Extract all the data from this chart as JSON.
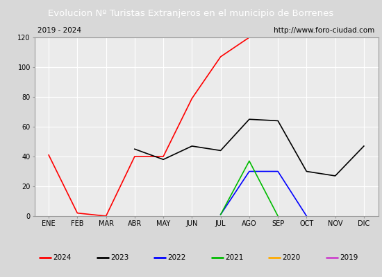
{
  "title": "Evolucion Nº Turistas Extranjeros en el municipio de Borrenes",
  "subtitle_left": "2019 - 2024",
  "subtitle_right": "http://www.foro-ciudad.com",
  "months": [
    "ENE",
    "FEB",
    "MAR",
    "ABR",
    "MAY",
    "JUN",
    "JUL",
    "AGO",
    "SEP",
    "OCT",
    "NOV",
    "DIC"
  ],
  "ylim": [
    0,
    120
  ],
  "yticks": [
    0,
    20,
    40,
    60,
    80,
    100,
    120
  ],
  "series": {
    "2024": {
      "color": "#ff0000",
      "data": [
        41,
        2,
        0,
        40,
        40,
        79,
        107,
        120,
        null,
        null,
        null,
        null
      ]
    },
    "2023": {
      "color": "#000000",
      "data": [
        null,
        null,
        null,
        45,
        38,
        47,
        44,
        65,
        64,
        30,
        27,
        47
      ]
    },
    "2022": {
      "color": "#0000ff",
      "data": [
        null,
        null,
        null,
        null,
        null,
        null,
        1,
        30,
        30,
        0,
        null,
        null
      ]
    },
    "2021": {
      "color": "#00bb00",
      "data": [
        null,
        null,
        null,
        null,
        null,
        null,
        1,
        37,
        0,
        null,
        null,
        null
      ]
    },
    "2020": {
      "color": "#ffaa00",
      "data": [
        null,
        null,
        null,
        null,
        null,
        null,
        null,
        null,
        null,
        null,
        null,
        null
      ]
    },
    "2019": {
      "color": "#cc44cc",
      "data": [
        null,
        null,
        null,
        null,
        null,
        null,
        null,
        null,
        null,
        null,
        null,
        null
      ]
    }
  },
  "title_bg_color": "#4a6fa5",
  "title_font_color": "#ffffff",
  "plot_bg_color": "#ebebeb",
  "grid_color": "#ffffff",
  "border_color": "#999999",
  "fig_bg_color": "#d8d8d8",
  "subtitle_box_color": "#ffffff",
  "legend_box_color": "#ffffff"
}
